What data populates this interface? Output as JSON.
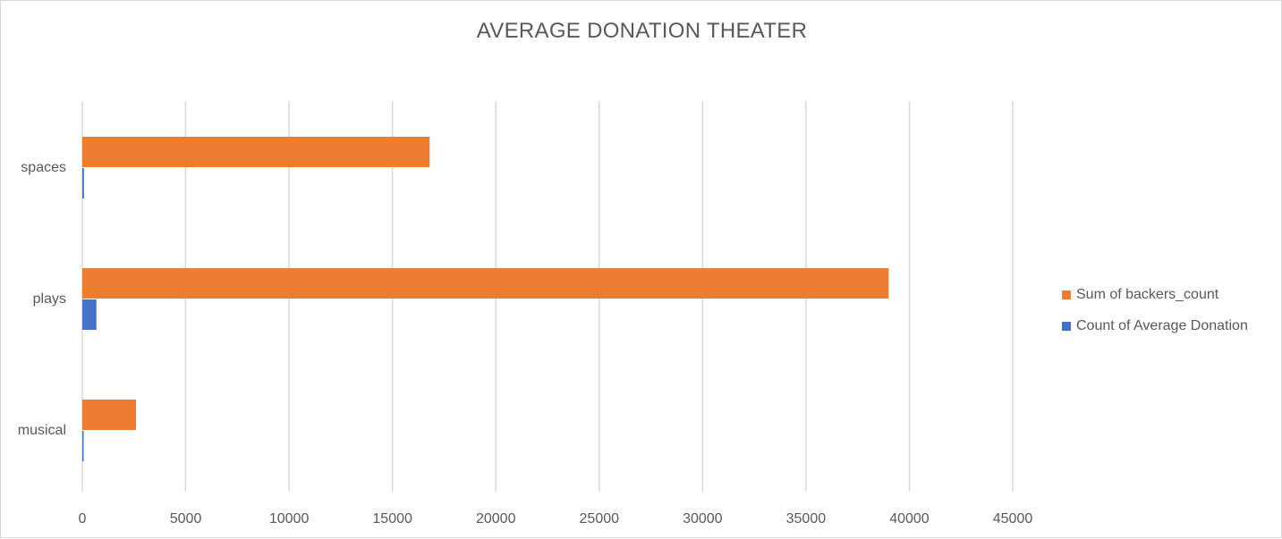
{
  "chart_data": {
    "type": "bar",
    "orientation": "horizontal",
    "title": "AVERAGE DONATION THEATER",
    "categories": [
      "spaces",
      "plays",
      "musical"
    ],
    "series": [
      {
        "name": "Sum of backers_count",
        "color": "#ED7D31",
        "values": [
          16800,
          39000,
          2600
        ]
      },
      {
        "name": "Count of Average Donation",
        "color": "#4472C4",
        "values": [
          80,
          680,
          30
        ]
      }
    ],
    "xlim": [
      0,
      45000
    ],
    "xticks": [
      0,
      5000,
      10000,
      15000,
      20000,
      25000,
      30000,
      35000,
      40000,
      45000
    ],
    "grid": true,
    "legend_position": "right"
  }
}
